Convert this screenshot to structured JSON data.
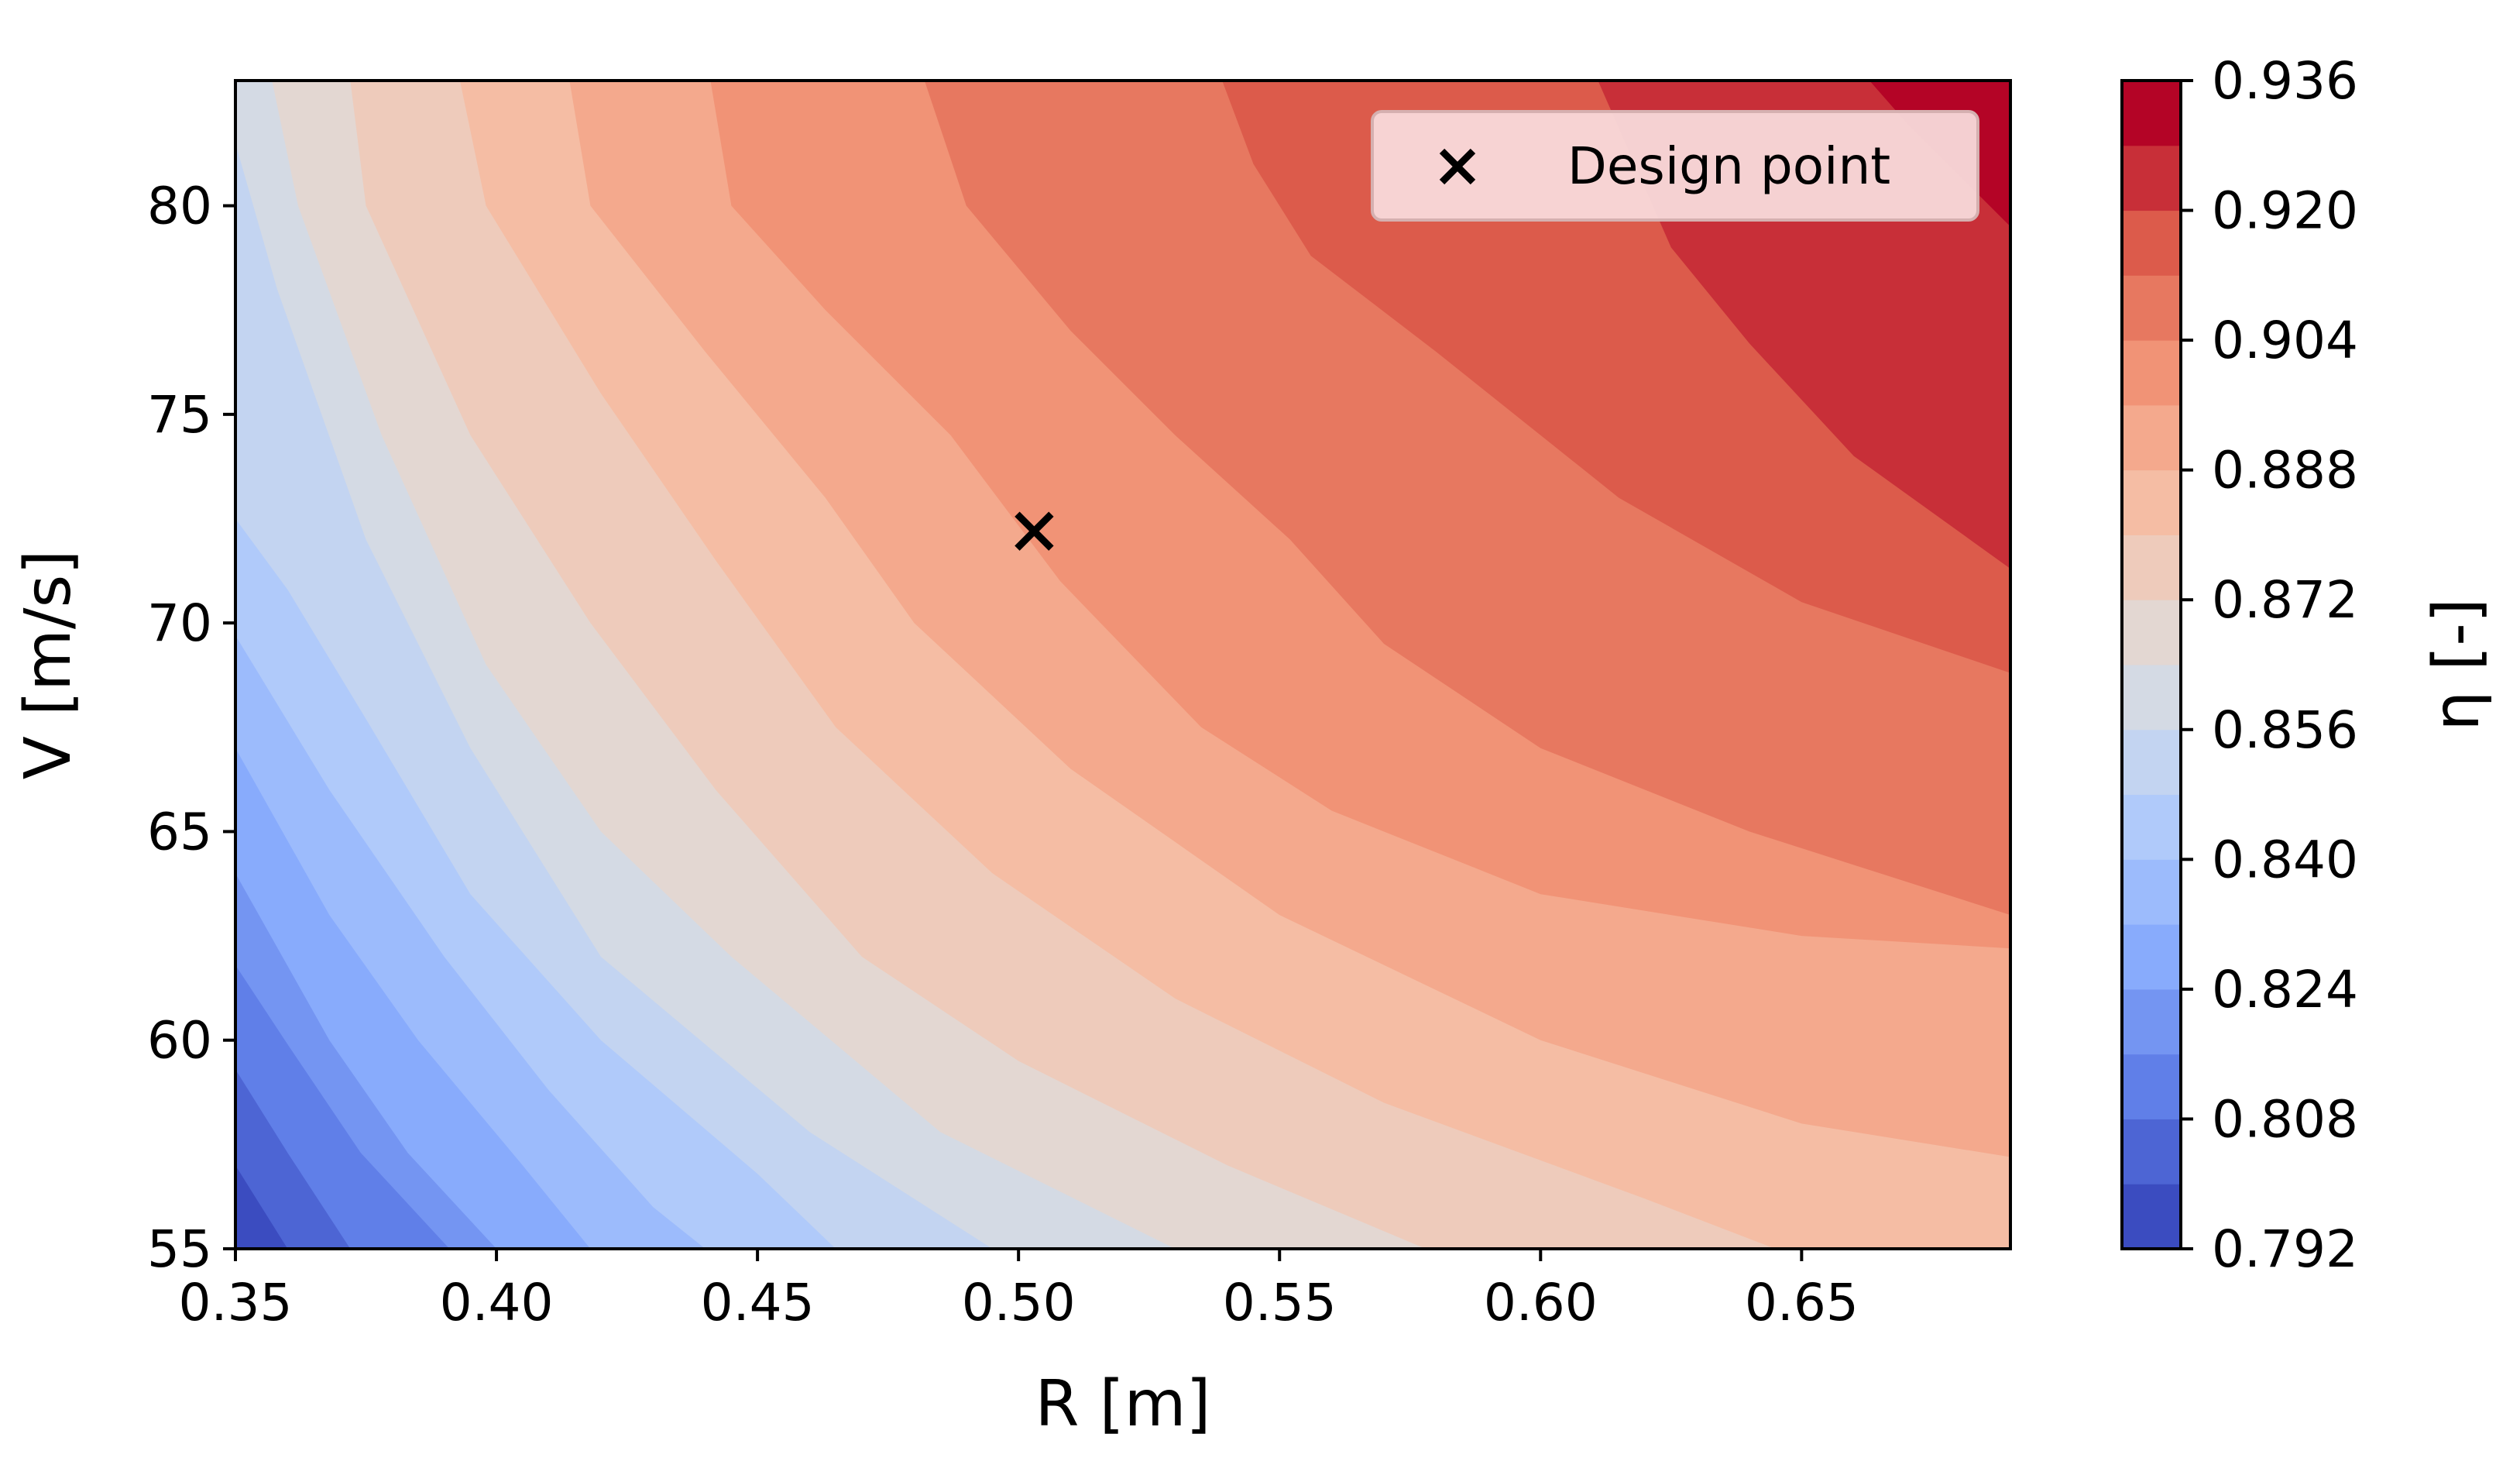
{
  "chart_data": {
    "type": "contour",
    "xlabel": "R [m]",
    "ylabel": "V [m/s]",
    "xlim": [
      0.35,
      0.69
    ],
    "ylim": [
      55,
      83
    ],
    "x_ticks": [
      "0.35",
      "0.40",
      "0.45",
      "0.50",
      "0.55",
      "0.60",
      "0.65"
    ],
    "y_ticks": [
      "55",
      "60",
      "65",
      "70",
      "75",
      "80"
    ],
    "colorbar": {
      "label": "η [-]",
      "colormap": "coolwarm",
      "levels": [
        0.792,
        0.8,
        0.808,
        0.816,
        0.824,
        0.832,
        0.84,
        0.848,
        0.856,
        0.864,
        0.872,
        0.88,
        0.888,
        0.896,
        0.904,
        0.912,
        0.92,
        0.928,
        0.936
      ],
      "tick_labels": [
        "0.792",
        "0.808",
        "0.824",
        "0.840",
        "0.856",
        "0.872",
        "0.888",
        "0.904",
        "0.920",
        "0.936"
      ]
    },
    "level_boundaries": [
      {
        "level": 0.8,
        "points": [
          [
            0.35,
            57.0
          ],
          [
            0.36,
            55.0
          ]
        ]
      },
      {
        "level": 0.808,
        "points": [
          [
            0.35,
            59.3
          ],
          [
            0.36,
            57.3
          ],
          [
            0.372,
            55.0
          ]
        ]
      },
      {
        "level": 0.816,
        "points": [
          [
            0.35,
            61.8
          ],
          [
            0.36,
            59.9
          ],
          [
            0.374,
            57.3
          ],
          [
            0.391,
            55.0
          ]
        ]
      },
      {
        "level": 0.824,
        "points": [
          [
            0.35,
            64.0
          ],
          [
            0.368,
            60.0
          ],
          [
            0.383,
            57.3
          ],
          [
            0.4,
            55.0
          ]
        ]
      },
      {
        "level": 0.832,
        "points": [
          [
            0.35,
            67.0
          ],
          [
            0.368,
            63.0
          ],
          [
            0.385,
            60.0
          ],
          [
            0.405,
            57.0
          ],
          [
            0.418,
            55.0
          ]
        ]
      },
      {
        "level": 0.84,
        "points": [
          [
            0.35,
            69.7
          ],
          [
            0.368,
            66.0
          ],
          [
            0.39,
            62.0
          ],
          [
            0.41,
            58.8
          ],
          [
            0.43,
            56.0
          ],
          [
            0.44,
            55.0
          ]
        ]
      },
      {
        "level": 0.848,
        "points": [
          [
            0.35,
            72.5
          ],
          [
            0.36,
            70.8
          ],
          [
            0.375,
            67.7
          ],
          [
            0.395,
            63.5
          ],
          [
            0.42,
            60.0
          ],
          [
            0.45,
            56.8
          ],
          [
            0.465,
            55.0
          ]
        ]
      },
      {
        "level": 0.856,
        "points": [
          [
            0.35,
            81.5
          ],
          [
            0.358,
            78.0
          ],
          [
            0.375,
            72.0
          ],
          [
            0.395,
            67.0
          ],
          [
            0.42,
            62.0
          ],
          [
            0.46,
            57.8
          ],
          [
            0.495,
            55.0
          ]
        ]
      },
      {
        "level": 0.864,
        "points": [
          [
            0.357,
            83.0
          ],
          [
            0.362,
            80.0
          ],
          [
            0.378,
            74.5
          ],
          [
            0.398,
            69.0
          ],
          [
            0.42,
            65.0
          ],
          [
            0.445,
            62.0
          ],
          [
            0.485,
            57.8
          ],
          [
            0.53,
            55.0
          ]
        ]
      },
      {
        "level": 0.872,
        "points": [
          [
            0.372,
            83.0
          ],
          [
            0.375,
            80.0
          ],
          [
            0.395,
            74.5
          ],
          [
            0.418,
            70.0
          ],
          [
            0.442,
            66.0
          ],
          [
            0.47,
            62.0
          ],
          [
            0.5,
            59.5
          ],
          [
            0.54,
            57.0
          ],
          [
            0.578,
            55.0
          ]
        ]
      },
      {
        "level": 0.88,
        "points": [
          [
            0.393,
            83.0
          ],
          [
            0.398,
            80.0
          ],
          [
            0.42,
            75.5
          ],
          [
            0.442,
            71.5
          ],
          [
            0.465,
            67.5
          ],
          [
            0.495,
            64.0
          ],
          [
            0.53,
            61.0
          ],
          [
            0.57,
            58.5
          ],
          [
            0.62,
            56.2
          ],
          [
            0.645,
            55.0
          ]
        ]
      },
      {
        "level": 0.888,
        "points": [
          [
            0.414,
            83.0
          ],
          [
            0.418,
            80.0
          ],
          [
            0.44,
            76.5
          ],
          [
            0.463,
            73.0
          ],
          [
            0.48,
            70.0
          ],
          [
            0.51,
            66.5
          ],
          [
            0.55,
            63.0
          ],
          [
            0.6,
            60.0
          ],
          [
            0.65,
            58.0
          ],
          [
            0.69,
            57.2
          ]
        ]
      },
      {
        "level": 0.896,
        "points": [
          [
            0.441,
            83.0
          ],
          [
            0.445,
            80.0
          ],
          [
            0.463,
            77.5
          ],
          [
            0.487,
            74.5
          ],
          [
            0.508,
            71.0
          ],
          [
            0.535,
            67.5
          ],
          [
            0.56,
            65.5
          ],
          [
            0.6,
            63.5
          ],
          [
            0.65,
            62.5
          ],
          [
            0.69,
            62.2
          ]
        ]
      },
      {
        "level": 0.904,
        "points": [
          [
            0.482,
            83.0
          ],
          [
            0.49,
            80.0
          ],
          [
            0.51,
            77.0
          ],
          [
            0.53,
            74.5
          ],
          [
            0.552,
            72.0
          ],
          [
            0.57,
            69.5
          ],
          [
            0.6,
            67.0
          ],
          [
            0.64,
            65.0
          ],
          [
            0.69,
            63.0
          ]
        ]
      },
      {
        "level": 0.912,
        "points": [
          [
            0.539,
            83.0
          ],
          [
            0.545,
            81.0
          ],
          [
            0.556,
            78.8
          ],
          [
            0.58,
            76.5
          ],
          [
            0.615,
            73.0
          ],
          [
            0.65,
            70.5
          ],
          [
            0.69,
            68.8
          ]
        ]
      },
      {
        "level": 0.92,
        "points": [
          [
            0.611,
            83.0
          ],
          [
            0.618,
            81.0
          ],
          [
            0.625,
            79.0
          ],
          [
            0.64,
            76.7
          ],
          [
            0.66,
            74.0
          ],
          [
            0.69,
            71.3
          ]
        ]
      },
      {
        "level": 0.928,
        "points": [
          [
            0.663,
            83.0
          ],
          [
            0.67,
            82.0
          ],
          [
            0.69,
            79.5
          ]
        ]
      }
    ],
    "markers": [
      {
        "name": "Design point",
        "symbol": "x",
        "x": 0.503,
        "y": 72.2
      }
    ],
    "legend": {
      "placement": "top-right",
      "entries": [
        "Design point"
      ]
    },
    "grid": false
  }
}
